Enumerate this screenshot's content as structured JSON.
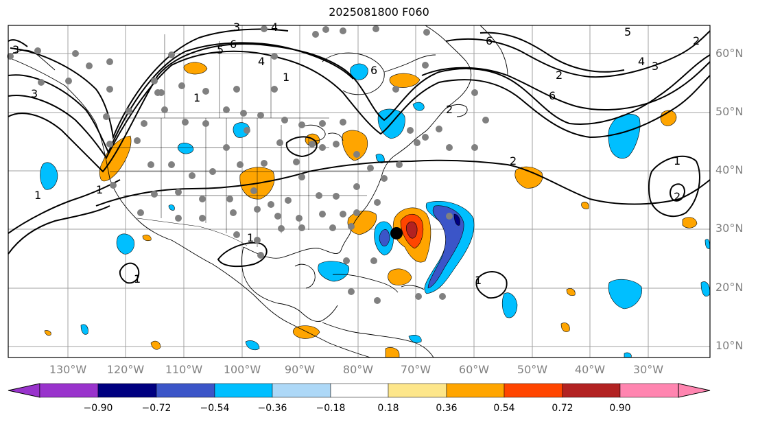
{
  "title": "2025081800 F060",
  "lat_labels": [
    "60°N",
    "50°N",
    "40°N",
    "30°N",
    "20°N",
    "10°N"
  ],
  "lon_labels": [
    "130°W",
    "120°W",
    "110°W",
    "100°W",
    "90°W",
    "80°W",
    "70°W",
    "60°W",
    "50°W",
    "40°W",
    "30°W"
  ],
  "colorbar": {
    "ticks": [
      "−0.90",
      "−0.72",
      "−0.54",
      "−0.36",
      "−0.18",
      "0.18",
      "0.36",
      "0.54",
      "0.72",
      "0.90"
    ],
    "colors": [
      "#9933cc",
      "#000080",
      "#3b55c8",
      "#00bfff",
      "#add8f7",
      "#ffffff",
      "#fde68a",
      "#ffa500",
      "#ff4500",
      "#b22222",
      "#ff85b0"
    ]
  },
  "contour_labels": [
    "1",
    "2",
    "3",
    "4",
    "5",
    "6"
  ],
  "colors": {
    "contour": "#000000",
    "station": "#808080",
    "storm_center": "#000000",
    "grid": "#a0a0a0"
  }
}
